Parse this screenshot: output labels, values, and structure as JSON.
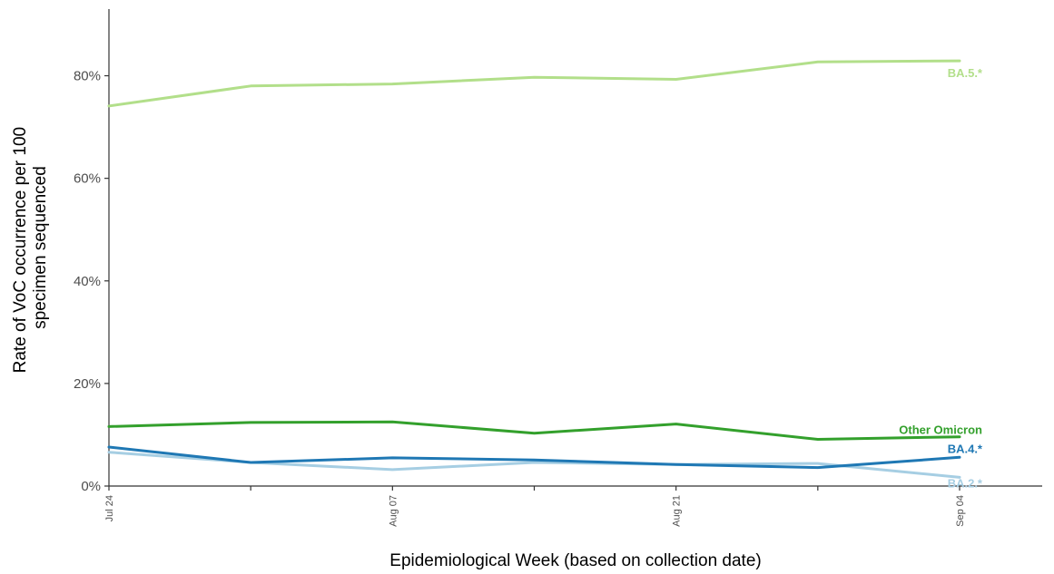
{
  "chart_data": {
    "type": "line",
    "title": "",
    "xlabel": "Epidemiological Week (based on collection date)",
    "ylabel": [
      "Rate of VoC occurrence per 100",
      "specimen sequenced"
    ],
    "x": [
      "Jul 24",
      "Jul 31",
      "Aug 07",
      "Aug 14",
      "Aug 21",
      "Aug 28",
      "Sep 04"
    ],
    "x_tick_labels": [
      "Jul 24",
      "Aug 07",
      "Aug 21",
      "Sep 04"
    ],
    "y_tick_labels": [
      "0%",
      "20%",
      "40%",
      "60%",
      "80%"
    ],
    "ylim": [
      0,
      93
    ],
    "grid": false,
    "legend": "direct labels at line ends",
    "series": [
      {
        "name": "BA.5.*",
        "color": "#b2df8a",
        "values": [
          74.1,
          78.0,
          78.4,
          79.7,
          79.3,
          82.7,
          82.9
        ]
      },
      {
        "name": "Other Omicron",
        "color": "#33a02c",
        "values": [
          11.6,
          12.4,
          12.5,
          10.3,
          12.1,
          9.1,
          9.6
        ]
      },
      {
        "name": "BA.4.*",
        "color": "#1f78b4",
        "values": [
          7.6,
          4.6,
          5.5,
          5.1,
          4.2,
          3.6,
          5.6
        ]
      },
      {
        "name": "BA.2.*",
        "color": "#a6cee3",
        "values": [
          6.6,
          4.6,
          3.2,
          4.6,
          4.2,
          4.4,
          1.7
        ]
      }
    ]
  }
}
